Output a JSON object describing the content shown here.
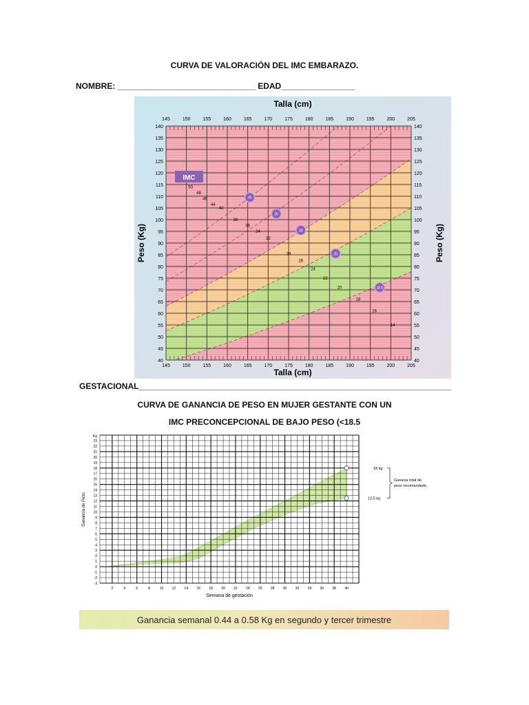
{
  "title": "CURVA DE VALORACIÓN DEL IMC EMBARAZO.",
  "nombre_line": "NOMBRE: ______________________________ EDAD________________",
  "gestacional_line": "GESTACIONAL___________________________________________________________________________",
  "subtitle_1": "CURVA DE GANANCIA DE PESO EN MUJER GESTANTE CON UN",
  "subtitle_2": "IMC PRECONCEPCIONAL DE BAJO PESO (<18.5",
  "banner": "Ganancia semanal  0.44 a 0.58 Kg en segundo y tercer trimestre",
  "chart_data": [
    {
      "type": "area",
      "xlabel": "Talla (cm)",
      "ylabel": "Peso (Kg)",
      "xlim": [
        145,
        205
      ],
      "ylim": [
        40,
        140
      ],
      "xticks": [
        145,
        150,
        155,
        160,
        165,
        170,
        175,
        180,
        185,
        190,
        195,
        200,
        205
      ],
      "yticks": [
        40,
        45,
        50,
        55,
        60,
        65,
        70,
        75,
        80,
        85,
        90,
        95,
        100,
        105,
        110,
        115,
        120,
        125,
        130,
        135,
        140
      ],
      "legend_box": "IMC",
      "bands": [
        {
          "from_imc": 0,
          "to_imc": 18.5,
          "color": "#f2a3ad"
        },
        {
          "from_imc": 18.5,
          "to_imc": 25,
          "color": "#bcdc85"
        },
        {
          "from_imc": 25,
          "to_imc": 30,
          "color": "#f7c98f"
        },
        {
          "from_imc": 30,
          "to_imc": 99,
          "color": "#f2a3ad"
        }
      ],
      "imc_markers": [
        "40",
        "35",
        "30",
        "25",
        "18.5"
      ],
      "imc_labels": [
        "50",
        "48",
        "46",
        "44",
        "42",
        "38",
        "36",
        "34",
        "32",
        "28",
        "26",
        "24",
        "22",
        "20",
        "18",
        "16",
        "14"
      ],
      "grid": true
    },
    {
      "type": "area",
      "xlabel": "Semana de gestación",
      "ylabel": "Ganancia de Peso",
      "yunit": "Kg",
      "xlim": [
        0,
        42
      ],
      "ylim": [
        -3,
        24
      ],
      "xticks": [
        2,
        4,
        6,
        8,
        10,
        12,
        14,
        16,
        18,
        20,
        22,
        24,
        26,
        28,
        30,
        32,
        34,
        36,
        38,
        40
      ],
      "yticks": [
        -3,
        -2,
        -1,
        0,
        1,
        2,
        3,
        4,
        5,
        6,
        7,
        8,
        9,
        10,
        11,
        12,
        13,
        14,
        15,
        16,
        17,
        18,
        19,
        20,
        21,
        22,
        23
      ],
      "upper": [
        [
          1,
          0
        ],
        [
          8,
          1
        ],
        [
          13,
          1.8
        ],
        [
          16,
          3.5
        ],
        [
          20,
          6
        ],
        [
          24,
          8.5
        ],
        [
          30,
          12
        ],
        [
          35,
          15
        ],
        [
          40,
          18
        ]
      ],
      "lower": [
        [
          1,
          0
        ],
        [
          8,
          0.5
        ],
        [
          13,
          0.7
        ],
        [
          16,
          1.5
        ],
        [
          20,
          4
        ],
        [
          25,
          7
        ],
        [
          30,
          9.5
        ],
        [
          35,
          11.5
        ],
        [
          40,
          12.5
        ]
      ],
      "band_color": "#cfe6a6",
      "annotations": {
        "top": "18 kg",
        "bottom": "12,5 kg",
        "bracket_1": "Ganacia total de",
        "bracket_2": "peso recomendado"
      },
      "grid": true
    }
  ]
}
